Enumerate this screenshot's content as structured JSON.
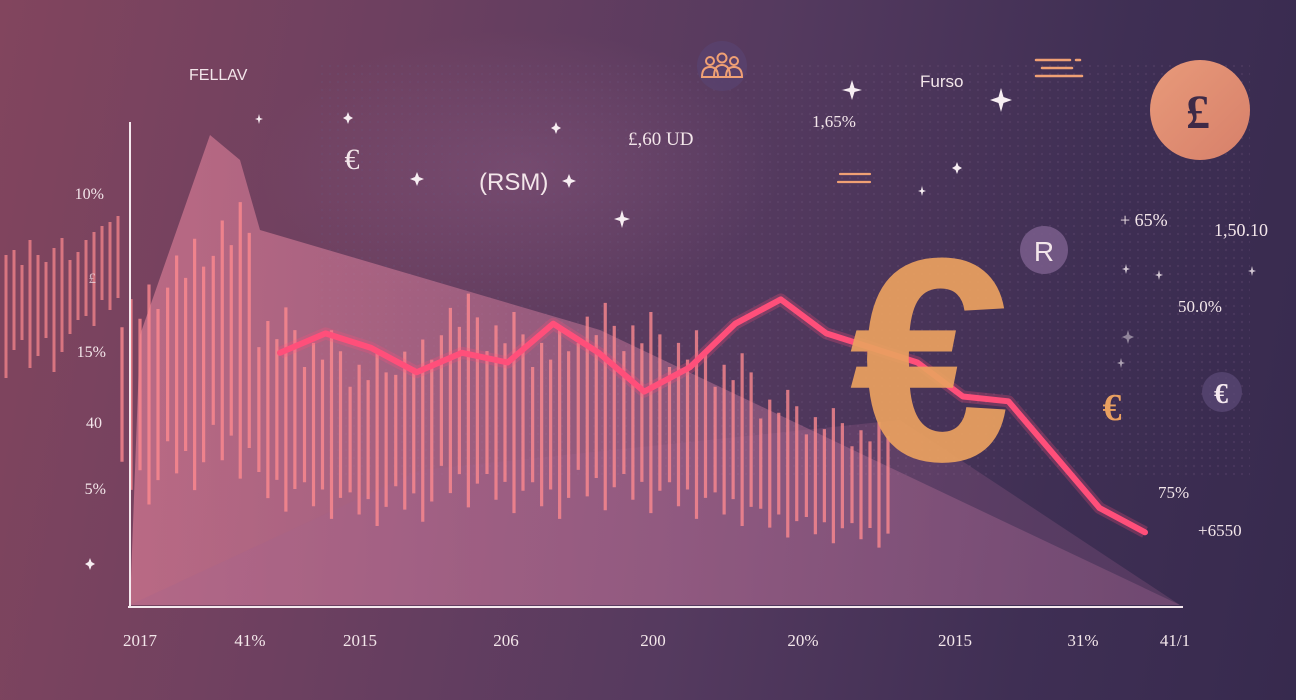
{
  "chart_data": {
    "type": "line",
    "title": "",
    "xlabel": "",
    "ylabel": "",
    "x_tick_labels": [
      "2017",
      "41%",
      "2015",
      "206",
      "200",
      "20%",
      "2015",
      "31%",
      "41/1"
    ],
    "y_tick_labels": [
      "10%",
      "£",
      "15%",
      "40",
      "5%"
    ],
    "grid": false,
    "legend": "none",
    "series": [
      {
        "x": [
          0,
          1,
          2,
          3,
          4,
          5,
          6,
          7,
          8,
          9,
          10,
          11,
          12,
          13,
          14,
          15,
          16,
          17,
          18,
          19
        ],
        "values": [
          52,
          56,
          53,
          48,
          52,
          50,
          58,
          52,
          44,
          49,
          58,
          63,
          56,
          53,
          50,
          43,
          42,
          31,
          20,
          15
        ]
      }
    ],
    "bars": {
      "x": [
        0,
        1,
        2,
        3,
        4,
        5,
        6,
        7,
        8,
        9,
        10,
        11,
        12,
        13,
        14,
        15,
        16
      ],
      "values": [
        70,
        80,
        88,
        65,
        60,
        55,
        58,
        68,
        64,
        60,
        66,
        64,
        60,
        55,
        47,
        43,
        40
      ]
    },
    "colors": {
      "line": "#ff4f7a",
      "bars": "#ff8a8f",
      "area": "#f07f9c",
      "axis": "#f5e9ee",
      "euro": "#e9a060"
    }
  },
  "annotations": {
    "top_left_label": "FELLAV",
    "top_right_label": "Furso",
    "rsm_label": "(RSM)",
    "price_label": "£,60 UD",
    "pct_label": "1,65%",
    "plus_65": "+ 65%",
    "value_1": "1,50.10",
    "value_2": "50.0%",
    "value_3": "75%",
    "value_4": "+6550",
    "r_badge": "R",
    "pound_symbol": "£",
    "euro_big": "€",
    "euro_small_1": "€",
    "euro_small_2": "€",
    "euro_small_3": "€"
  }
}
